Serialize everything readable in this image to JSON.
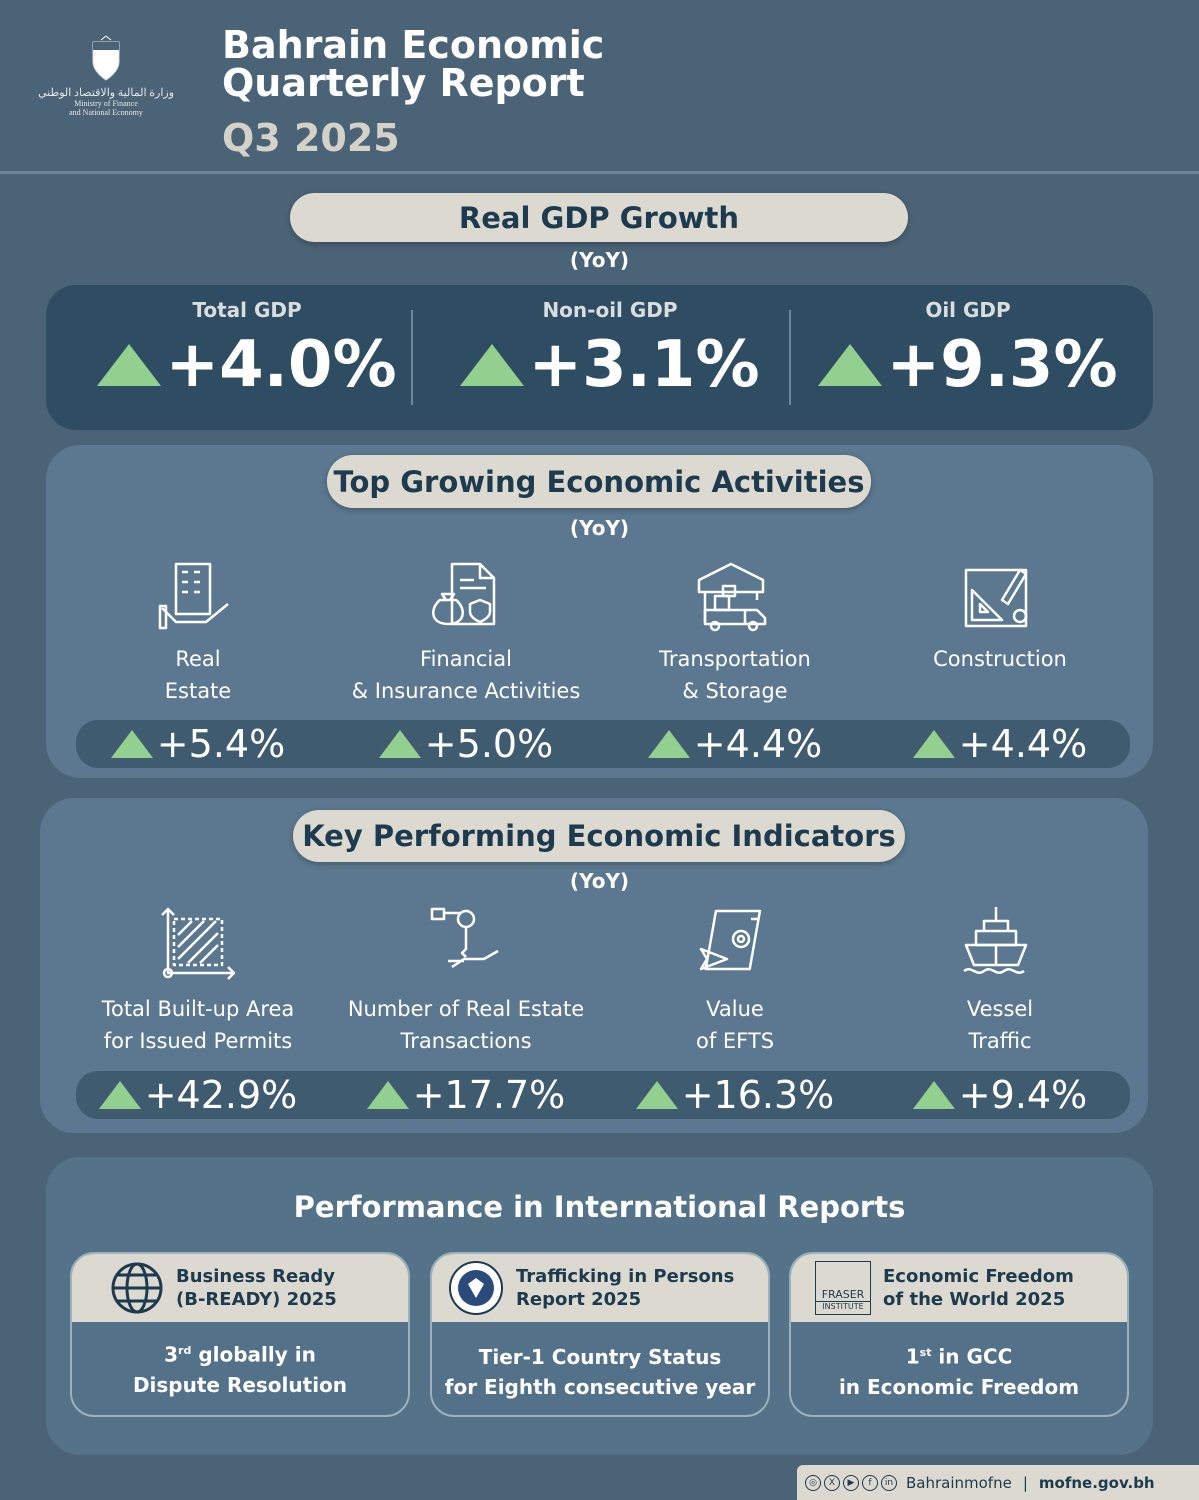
{
  "header": {
    "logo_text_ar": "وزارة المالية والاقتصاد الوطني",
    "logo_text_en_1": "Ministry of Finance",
    "logo_text_en_2": "and National Economy",
    "title_1": "Bahrain Economic",
    "title_2": "Quarterly Report",
    "period": "Q3 2025"
  },
  "gdp": {
    "title": "Real GDP Growth",
    "subtitle": "(YoY)",
    "items": [
      {
        "label": "Total GDP",
        "value": "+4.0%"
      },
      {
        "label": "Non-oil GDP",
        "value": "+3.1%"
      },
      {
        "label": "Oil GDP",
        "value": "+9.3%"
      }
    ]
  },
  "activities": {
    "title": "Top Growing Economic Activities",
    "subtitle": "(YoY)",
    "items": [
      {
        "icon": "building-hand-icon",
        "line1": "Real",
        "line2": "Estate",
        "value": "+5.4%"
      },
      {
        "icon": "money-bag-document-icon",
        "line1": "Financial",
        "line2": "& Insurance Activities",
        "value": "+5.0%"
      },
      {
        "icon": "warehouse-truck-icon",
        "line1": "Transportation",
        "line2": "& Storage",
        "value": "+4.4%"
      },
      {
        "icon": "blueprint-icon",
        "line1": "Construction",
        "line2": "",
        "value": "+4.4%"
      }
    ]
  },
  "indicators": {
    "title": "Key Performing Economic Indicators",
    "subtitle": "(YoY)",
    "items": [
      {
        "icon": "area-measure-icon",
        "line1": "Total Built-up Area",
        "line2": "for Issued Permits",
        "value": "+42.9%"
      },
      {
        "icon": "key-hand-icon",
        "line1": "Number of Real Estate",
        "line2": "Transactions",
        "value": "+17.7%"
      },
      {
        "icon": "money-transfer-icon",
        "line1": "Value",
        "line2": "of EFTS",
        "value": "+16.3%"
      },
      {
        "icon": "ship-icon",
        "line1": "Vessel",
        "line2": "Traffic",
        "value": "+9.4%"
      }
    ]
  },
  "international": {
    "title": "Performance in International Reports",
    "cards": [
      {
        "icon": "globe-icon",
        "title_1": "Business Ready",
        "title_2": "(B-READY) 2025",
        "rank": "3",
        "sup": "rd",
        "body_1": " globally in",
        "body_2": "Dispute Resolution"
      },
      {
        "icon": "state-department-seal-icon",
        "title_1": "Trafficking in Persons",
        "title_2": "Report 2025",
        "rank": "",
        "sup": "",
        "body_1": "Tier-1 Country Status",
        "body_2": "for Eighth consecutive year"
      },
      {
        "icon": "fraser-institute-logo",
        "logo_1": "FRASER",
        "logo_2": "INSTITUTE",
        "title_1": "Economic Freedom",
        "title_2": "of the World 2025",
        "rank": "1",
        "sup": "st",
        "body_1": " in GCC",
        "body_2": "in Economic Freedom"
      }
    ]
  },
  "footer": {
    "handle": "Bahrainmofne",
    "separator": "|",
    "website": "mofne.gov.bh"
  },
  "colors": {
    "background": "#4b6376",
    "panel_dark": "#2f4d62",
    "section": "#5b7890",
    "pill": "#dcdad0",
    "text_dark": "#1d3a4e",
    "up_arrow": "#93cf8e"
  }
}
